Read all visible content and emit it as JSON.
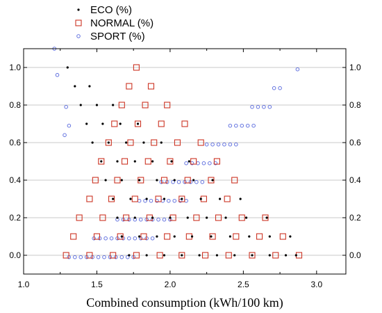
{
  "chart_data": {
    "type": "scatter",
    "xlabel": "Combined consumption (kWh/100 km)",
    "ylabel": "",
    "xlim": [
      1.0,
      3.2
    ],
    "ylim": [
      -0.1,
      1.1
    ],
    "x_ticks": [
      "1.0",
      "1.5",
      "2.0",
      "2.5",
      "3.0"
    ],
    "y_ticks": [
      "0.0",
      "0.2",
      "0.4",
      "0.6",
      "0.8",
      "1.0"
    ],
    "x_tick_values": [
      1.0,
      1.5,
      2.0,
      2.5,
      3.0
    ],
    "y_tick_values": [
      0.0,
      0.2,
      0.4,
      0.6,
      0.8,
      1.0
    ],
    "grid": "horizontal",
    "legend_position": "top-left",
    "series": [
      {
        "name": "ECO (%)",
        "marker": "dot",
        "color": "#000000",
        "points": [
          [
            1.3,
            1.0
          ],
          [
            1.35,
            0.9
          ],
          [
            1.45,
            0.9
          ],
          [
            1.39,
            0.8
          ],
          [
            1.5,
            0.8
          ],
          [
            1.61,
            0.8
          ],
          [
            1.43,
            0.7
          ],
          [
            1.54,
            0.7
          ],
          [
            1.66,
            0.7
          ],
          [
            1.78,
            0.7
          ],
          [
            1.47,
            0.6
          ],
          [
            1.58,
            0.6
          ],
          [
            1.7,
            0.6
          ],
          [
            1.82,
            0.6
          ],
          [
            1.94,
            0.6
          ],
          [
            1.53,
            0.5
          ],
          [
            1.64,
            0.5
          ],
          [
            1.76,
            0.5
          ],
          [
            1.88,
            0.5
          ],
          [
            2.01,
            0.5
          ],
          [
            2.13,
            0.5
          ],
          [
            1.56,
            0.4
          ],
          [
            1.67,
            0.4
          ],
          [
            1.79,
            0.4
          ],
          [
            1.91,
            0.4
          ],
          [
            2.03,
            0.4
          ],
          [
            2.16,
            0.4
          ],
          [
            2.29,
            0.4
          ],
          [
            1.61,
            0.3
          ],
          [
            1.73,
            0.3
          ],
          [
            1.84,
            0.3
          ],
          [
            1.96,
            0.3
          ],
          [
            2.08,
            0.3
          ],
          [
            2.21,
            0.3
          ],
          [
            2.34,
            0.3
          ],
          [
            2.48,
            0.3
          ],
          [
            1.64,
            0.2
          ],
          [
            1.76,
            0.2
          ],
          [
            1.88,
            0.2
          ],
          [
            2.0,
            0.2
          ],
          [
            2.12,
            0.2
          ],
          [
            2.25,
            0.2
          ],
          [
            2.38,
            0.2
          ],
          [
            2.52,
            0.2
          ],
          [
            2.66,
            0.2
          ],
          [
            1.67,
            0.1
          ],
          [
            1.79,
            0.1
          ],
          [
            1.91,
            0.1
          ],
          [
            2.03,
            0.1
          ],
          [
            2.15,
            0.1
          ],
          [
            2.28,
            0.1
          ],
          [
            2.41,
            0.1
          ],
          [
            2.54,
            0.1
          ],
          [
            2.68,
            0.1
          ],
          [
            2.82,
            0.1
          ],
          [
            1.72,
            0.0
          ],
          [
            1.84,
            0.0
          ],
          [
            1.96,
            0.0
          ],
          [
            2.08,
            0.0
          ],
          [
            2.2,
            0.0
          ],
          [
            2.32,
            0.0
          ],
          [
            2.44,
            0.0
          ],
          [
            2.56,
            0.0
          ],
          [
            2.68,
            0.0
          ],
          [
            2.79,
            0.0
          ],
          [
            2.86,
            0.0
          ]
        ]
      },
      {
        "name": "NORMAL (%)",
        "marker": "square",
        "color": "#cc3322",
        "points": [
          [
            1.77,
            1.0
          ],
          [
            1.72,
            0.9
          ],
          [
            1.87,
            0.9
          ],
          [
            1.67,
            0.8
          ],
          [
            1.83,
            0.8
          ],
          [
            1.98,
            0.8
          ],
          [
            1.62,
            0.7
          ],
          [
            1.78,
            0.7
          ],
          [
            1.94,
            0.7
          ],
          [
            2.1,
            0.7
          ],
          [
            1.58,
            0.6
          ],
          [
            1.73,
            0.6
          ],
          [
            1.89,
            0.6
          ],
          [
            2.05,
            0.6
          ],
          [
            2.21,
            0.6
          ],
          [
            1.53,
            0.5
          ],
          [
            1.69,
            0.5
          ],
          [
            1.85,
            0.5
          ],
          [
            2.0,
            0.5
          ],
          [
            2.16,
            0.5
          ],
          [
            2.32,
            0.5
          ],
          [
            1.49,
            0.4
          ],
          [
            1.64,
            0.4
          ],
          [
            1.8,
            0.4
          ],
          [
            1.96,
            0.4
          ],
          [
            2.12,
            0.4
          ],
          [
            2.28,
            0.4
          ],
          [
            2.44,
            0.4
          ],
          [
            1.45,
            0.3
          ],
          [
            1.6,
            0.3
          ],
          [
            1.76,
            0.3
          ],
          [
            1.92,
            0.3
          ],
          [
            2.08,
            0.3
          ],
          [
            2.23,
            0.3
          ],
          [
            2.39,
            0.3
          ],
          [
            1.38,
            0.2
          ],
          [
            1.54,
            0.2
          ],
          [
            1.7,
            0.2
          ],
          [
            1.86,
            0.2
          ],
          [
            2.02,
            0.2
          ],
          [
            2.18,
            0.2
          ],
          [
            2.33,
            0.2
          ],
          [
            2.49,
            0.2
          ],
          [
            2.65,
            0.2
          ],
          [
            1.34,
            0.1
          ],
          [
            1.5,
            0.1
          ],
          [
            1.66,
            0.1
          ],
          [
            1.82,
            0.1
          ],
          [
            1.98,
            0.1
          ],
          [
            2.13,
            0.1
          ],
          [
            2.29,
            0.1
          ],
          [
            2.45,
            0.1
          ],
          [
            2.61,
            0.1
          ],
          [
            2.77,
            0.1
          ],
          [
            1.29,
            0.0
          ],
          [
            1.45,
            0.0
          ],
          [
            1.61,
            0.0
          ],
          [
            1.77,
            0.0
          ],
          [
            1.93,
            0.0
          ],
          [
            2.08,
            0.0
          ],
          [
            2.24,
            0.0
          ],
          [
            2.4,
            0.0
          ],
          [
            2.56,
            0.0
          ],
          [
            2.72,
            0.0
          ],
          [
            2.88,
            0.0
          ]
        ]
      },
      {
        "name": "SPORT (%)",
        "marker": "circle",
        "color": "#5566dd",
        "points": [
          [
            2.87,
            0.99
          ],
          [
            2.71,
            0.89
          ],
          [
            2.75,
            0.89
          ],
          [
            2.56,
            0.79
          ],
          [
            2.6,
            0.79
          ],
          [
            2.64,
            0.79
          ],
          [
            2.68,
            0.79
          ],
          [
            2.41,
            0.69
          ],
          [
            2.45,
            0.69
          ],
          [
            2.49,
            0.69
          ],
          [
            2.53,
            0.69
          ],
          [
            2.57,
            0.69
          ],
          [
            2.25,
            0.59
          ],
          [
            2.29,
            0.59
          ],
          [
            2.33,
            0.59
          ],
          [
            2.37,
            0.59
          ],
          [
            2.41,
            0.59
          ],
          [
            2.45,
            0.59
          ],
          [
            2.11,
            0.49
          ],
          [
            2.15,
            0.49
          ],
          [
            2.19,
            0.49
          ],
          [
            2.23,
            0.49
          ],
          [
            2.27,
            0.49
          ],
          [
            2.31,
            0.49
          ],
          [
            1.94,
            0.39
          ],
          [
            1.98,
            0.39
          ],
          [
            2.02,
            0.39
          ],
          [
            2.06,
            0.39
          ],
          [
            2.1,
            0.39
          ],
          [
            2.14,
            0.39
          ],
          [
            2.18,
            0.39
          ],
          [
            2.22,
            0.39
          ],
          [
            1.79,
            0.29
          ],
          [
            1.83,
            0.29
          ],
          [
            1.87,
            0.29
          ],
          [
            1.91,
            0.29
          ],
          [
            1.95,
            0.29
          ],
          [
            1.99,
            0.29
          ],
          [
            2.03,
            0.29
          ],
          [
            2.07,
            0.29
          ],
          [
            2.11,
            0.29
          ],
          [
            1.64,
            0.19
          ],
          [
            1.68,
            0.19
          ],
          [
            1.72,
            0.19
          ],
          [
            1.76,
            0.19
          ],
          [
            1.8,
            0.19
          ],
          [
            1.84,
            0.19
          ],
          [
            1.88,
            0.19
          ],
          [
            1.92,
            0.19
          ],
          [
            1.96,
            0.19
          ],
          [
            2.0,
            0.19
          ],
          [
            1.48,
            0.09
          ],
          [
            1.52,
            0.09
          ],
          [
            1.56,
            0.09
          ],
          [
            1.6,
            0.09
          ],
          [
            1.64,
            0.09
          ],
          [
            1.68,
            0.09
          ],
          [
            1.72,
            0.09
          ],
          [
            1.76,
            0.09
          ],
          [
            1.8,
            0.09
          ],
          [
            1.84,
            0.09
          ],
          [
            1.88,
            0.09
          ],
          [
            1.31,
            -0.01
          ],
          [
            1.35,
            -0.01
          ],
          [
            1.39,
            -0.01
          ],
          [
            1.43,
            -0.01
          ],
          [
            1.47,
            -0.01
          ],
          [
            1.51,
            -0.01
          ],
          [
            1.55,
            -0.01
          ],
          [
            1.59,
            -0.01
          ],
          [
            1.63,
            -0.01
          ],
          [
            1.67,
            -0.01
          ],
          [
            1.71,
            -0.01
          ],
          [
            1.75,
            -0.01
          ],
          [
            1.21,
            1.1
          ],
          [
            1.23,
            0.96
          ],
          [
            1.29,
            0.79
          ],
          [
            1.31,
            0.69
          ],
          [
            1.28,
            0.64
          ]
        ]
      }
    ]
  }
}
